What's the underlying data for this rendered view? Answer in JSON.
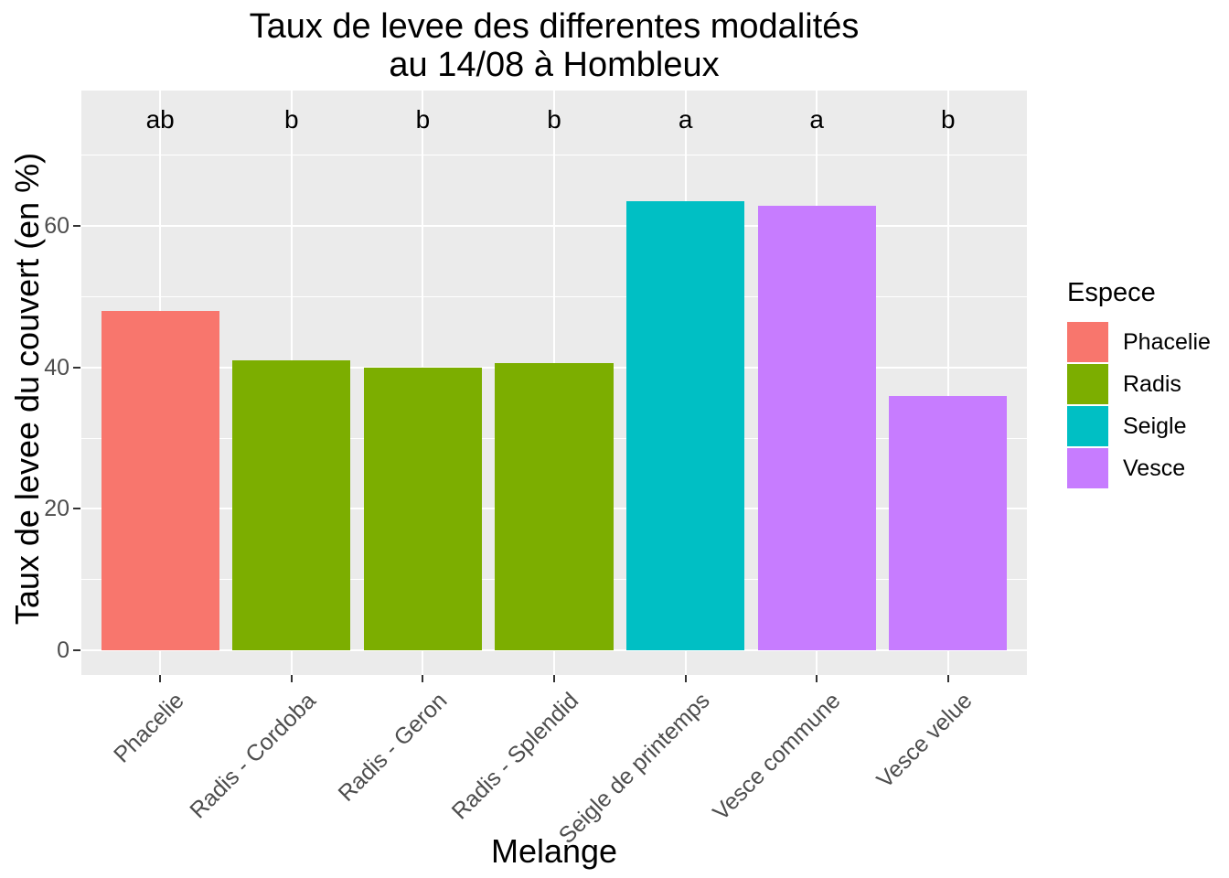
{
  "title": {
    "line1": "Taux de levee des differentes modalités",
    "line2": "au 14/08 à Hombleux"
  },
  "axes": {
    "x_title": "Melange",
    "y_title": "Taux de levee du couvert (en %)",
    "y_ticks": [
      0,
      20,
      40,
      60
    ],
    "y_minor_ticks": [
      10,
      30,
      50,
      70
    ]
  },
  "legend": {
    "title": "Espece",
    "items": [
      {
        "label": "Phacelie",
        "color": "#F8766D"
      },
      {
        "label": "Radis",
        "color": "#7CAE00"
      },
      {
        "label": "Seigle",
        "color": "#00BFC4"
      },
      {
        "label": "Vesce",
        "color": "#C77CFF"
      }
    ]
  },
  "chart_data": {
    "type": "bar",
    "title": "Taux de levee des differentes modalités au 14/08 à Hombleux",
    "xlabel": "Melange",
    "ylabel": "Taux de levee du couvert (en %)",
    "categories": [
      "Phacelie",
      "Radis - Cordoba",
      "Radis - Geron",
      "Radis - Splendid",
      "Seigle de printemps",
      "Vesce commune",
      "Vesce velue"
    ],
    "values": [
      48,
      41,
      40,
      40.6,
      63.5,
      62.8,
      36
    ],
    "groups": [
      "Phacelie",
      "Radis",
      "Radis",
      "Radis",
      "Seigle",
      "Vesce",
      "Vesce"
    ],
    "bar_colors": [
      "#F8766D",
      "#7CAE00",
      "#7CAE00",
      "#7CAE00",
      "#00BFC4",
      "#C77CFF",
      "#C77CFF"
    ],
    "sig_letters": [
      "ab",
      "b",
      "b",
      "b",
      "a",
      "a",
      "b"
    ],
    "sig_letters_y": 75,
    "yticks": [
      0,
      20,
      40,
      60
    ],
    "ylim": [
      -3.75,
      78.75
    ],
    "grid": true,
    "legend_position": "right",
    "legend_title": "Espece"
  },
  "colors": {
    "panel_bg": "#EBEBEB",
    "grid": "#FFFFFF",
    "axis_text": "#4D4D4D",
    "tick_mark": "#333333",
    "text": "#000000"
  }
}
